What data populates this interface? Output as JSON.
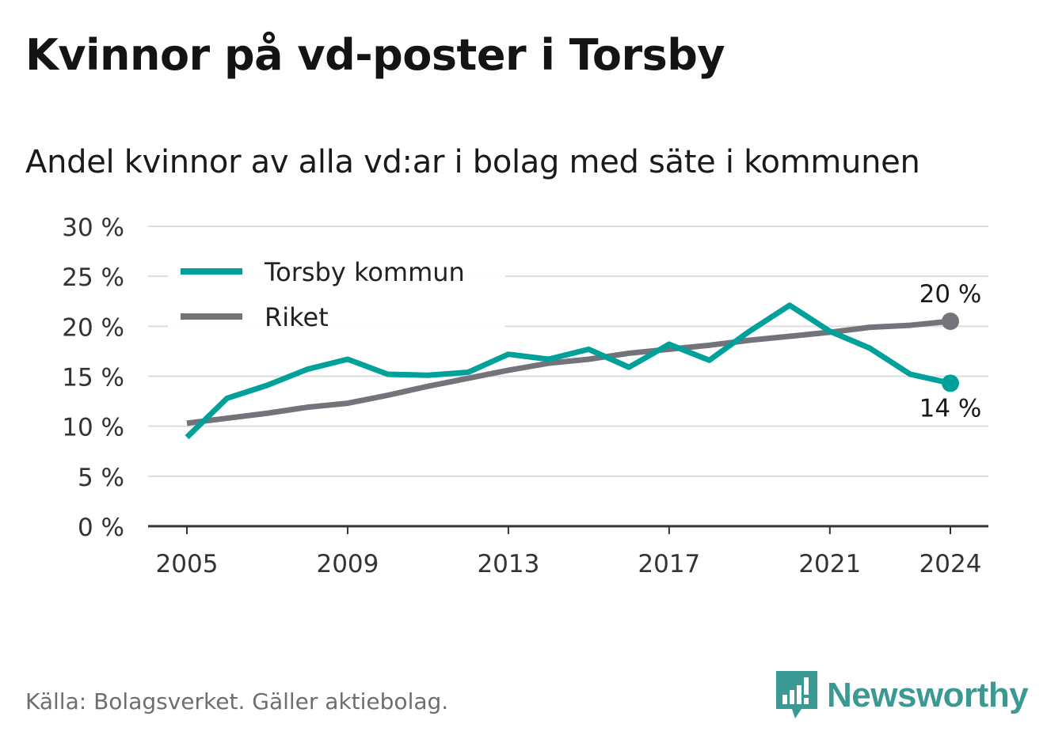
{
  "title": "Kvinnor på vd-poster i Torsby",
  "subtitle": "Andel kvinnor av alla vd:ar i bolag med säte i kommunen",
  "source": "Källa: Bolagsverket. Gäller aktiebolag.",
  "brand": {
    "name": "Newsworthy",
    "logo_icon": "bar-chart-pin-icon",
    "color": "#3a9a93"
  },
  "chart_data": {
    "type": "line",
    "x": [
      2005,
      2006,
      2007,
      2008,
      2009,
      2010,
      2011,
      2012,
      2013,
      2014,
      2015,
      2016,
      2017,
      2018,
      2019,
      2020,
      2021,
      2022,
      2023,
      2024
    ],
    "series": [
      {
        "name": "Torsby kommun",
        "color": "#00a19a",
        "values": [
          8.9,
          12.8,
          14.1,
          15.7,
          16.7,
          15.2,
          15.1,
          15.4,
          17.2,
          16.7,
          17.7,
          15.9,
          18.2,
          16.6,
          19.5,
          22.1,
          19.5,
          17.8,
          15.2,
          14.3
        ],
        "end_label": "14 %"
      },
      {
        "name": "Riket",
        "color": "#75737a",
        "values": [
          10.3,
          10.8,
          11.3,
          11.9,
          12.3,
          13.1,
          14.0,
          14.8,
          15.6,
          16.3,
          16.7,
          17.3,
          17.7,
          18.1,
          18.6,
          19.0,
          19.4,
          19.9,
          20.1,
          20.5
        ],
        "end_label": "20 %"
      }
    ],
    "ylim": [
      0,
      30
    ],
    "yticks": [
      0,
      5,
      10,
      15,
      20,
      25,
      30
    ],
    "ytick_labels": [
      "0 %",
      "5 %",
      "10 %",
      "15 %",
      "20 %",
      "25 %",
      "30 %"
    ],
    "xticks": [
      2005,
      2009,
      2013,
      2017,
      2021,
      2024
    ],
    "xtick_labels": [
      "2005",
      "2009",
      "2013",
      "2017",
      "2021",
      "2024"
    ],
    "xlabel": "",
    "ylabel": "",
    "grid": true,
    "legend": "top-left"
  }
}
